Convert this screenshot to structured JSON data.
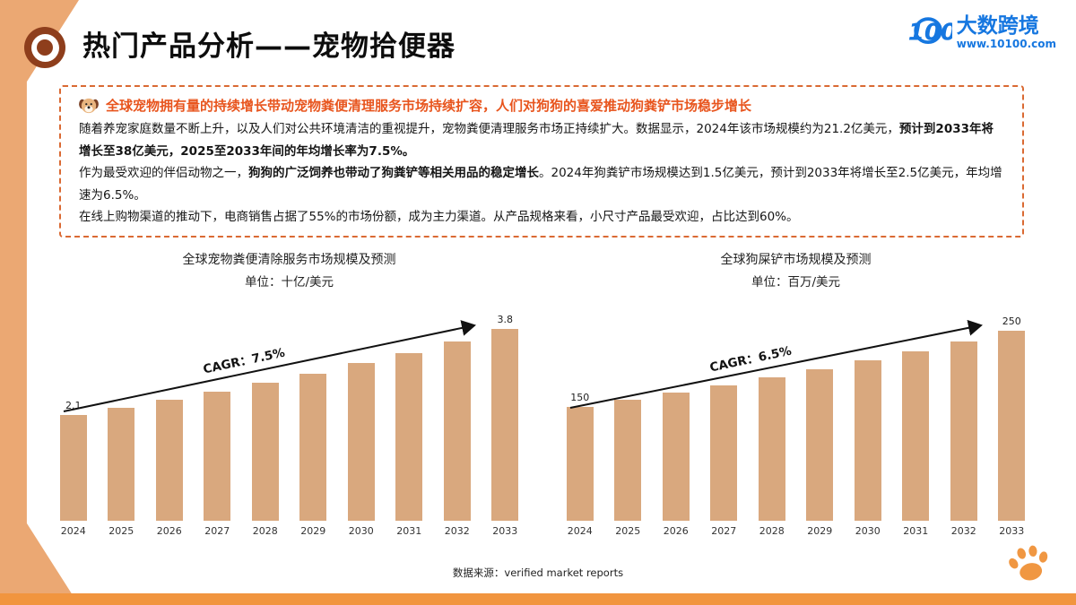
{
  "page": {
    "title": "热门产品分析——宠物拾便器",
    "logo": {
      "name": "大数跨境",
      "url": "www.10100.com",
      "mark": "100"
    },
    "source_note": "数据来源：verified market reports"
  },
  "theme": {
    "accent_orange": "#F1953F",
    "strip_tan": "#EBA873",
    "bar_tan": "#D9A87E",
    "border_dash": "#DA6A33",
    "headline_orange": "#E8551E",
    "logo_blue": "#1677E0"
  },
  "info_box": {
    "headline": "全球宠物拥有量的持续增长带动宠物粪便清理服务市场持续扩容，人们对狗狗的喜爱推动狗粪铲市场稳步增长",
    "paragraphs": [
      {
        "runs": [
          {
            "t": "随着养宠家庭数量不断上升，以及人们对公共环境清洁的重视提升，宠物粪便清理服务市场正持续扩大。数据显示，2024年该市场规模约为21.2亿美元，",
            "b": false
          },
          {
            "t": "预计到2033年将增长至38亿美元，2025至2033年间的年均增长率为7.5%。",
            "b": true
          }
        ]
      },
      {
        "runs": [
          {
            "t": "作为最受欢迎的伴侣动物之一，",
            "b": false
          },
          {
            "t": "狗狗的广泛饲养也带动了狗粪铲等相关用品的稳定增长",
            "b": true
          },
          {
            "t": "。2024年狗粪铲市场规模达到1.5亿美元，预计到2033年将增长至2.5亿美元，年均增速为6.5%。",
            "b": false
          }
        ]
      },
      {
        "runs": [
          {
            "t": "在线上购物渠道的推动下，电商销售占据了55%的市场份额，成为主力渠道。从产品规格来看，小尺寸产品最受欢迎，占比达到60%。",
            "b": false
          }
        ]
      }
    ]
  },
  "chart_data": [
    {
      "type": "bar",
      "title": "全球宠物粪便清除服务市场规模及预测",
      "unit": "单位：十亿/美元",
      "categories": [
        "2024",
        "2025",
        "2026",
        "2027",
        "2028",
        "2029",
        "2030",
        "2031",
        "2032",
        "2033"
      ],
      "values": [
        2.1,
        2.24,
        2.4,
        2.56,
        2.73,
        2.92,
        3.12,
        3.33,
        3.56,
        3.8
      ],
      "value_labels": [
        "2.1",
        "",
        "",
        "",
        "",
        "",
        "",
        "",
        "",
        "3.8"
      ],
      "cagr_label": "CAGR：7.5%",
      "bar_color": "#D9A87E",
      "ylim": [
        0,
        4
      ],
      "legend": "none",
      "grid": false
    },
    {
      "type": "bar",
      "title": "全球狗屎铲市场规模及预测",
      "unit": "单位：百万/美元",
      "categories": [
        "2024",
        "2025",
        "2026",
        "2027",
        "2028",
        "2029",
        "2030",
        "2031",
        "2032",
        "2033"
      ],
      "values": [
        150,
        159,
        168,
        178,
        188,
        199,
        211,
        223,
        236,
        250
      ],
      "value_labels": [
        "150",
        "",
        "",
        "",
        "",
        "",
        "",
        "",
        "",
        "250"
      ],
      "cagr_label": "CAGR：6.5%",
      "bar_color": "#D9A87E",
      "ylim": [
        0,
        265
      ],
      "legend": "none",
      "grid": false
    }
  ]
}
